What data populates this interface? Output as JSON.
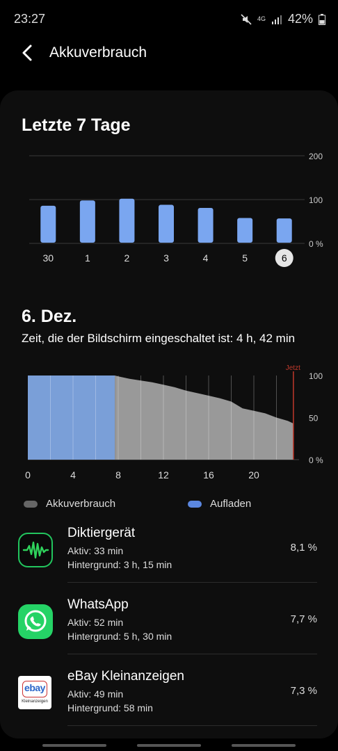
{
  "status": {
    "time": "23:27",
    "network": "4G",
    "battery": "42%"
  },
  "header": {
    "title": "Akkuverbrauch"
  },
  "week": {
    "title": "Letzte 7 Tage",
    "selected": "6",
    "chart_data": {
      "type": "bar",
      "categories": [
        "30",
        "1",
        "2",
        "3",
        "4",
        "5",
        "6"
      ],
      "values": [
        86,
        98,
        102,
        88,
        81,
        58,
        57
      ],
      "yticks": [
        "200",
        "100",
        "0 %"
      ],
      "ylim": [
        0,
        200
      ],
      "color": "#7aa6f0"
    }
  },
  "day": {
    "title": "6. Dez.",
    "screen_time": "Zeit, die der Bildschirm eingeschaltet ist: 4 h, 42 min",
    "now_label": "Jetzt",
    "chart_data": {
      "type": "area",
      "xticks": [
        "0",
        "4",
        "8",
        "12",
        "16",
        "20"
      ],
      "yticks": [
        "100",
        "50",
        "0 %"
      ],
      "xlim": [
        0,
        24
      ],
      "ylim": [
        0,
        100
      ],
      "charging": {
        "from": 0,
        "to": 7.7,
        "level": 100,
        "color": "#7a9fd8"
      },
      "usage": {
        "x": [
          7.7,
          8,
          9,
          10,
          11,
          12,
          13,
          14,
          15,
          16,
          17,
          18,
          19,
          20,
          21,
          22,
          23,
          23.5
        ],
        "y": [
          100,
          99,
          96,
          94,
          92,
          89,
          86,
          82,
          79,
          76,
          73,
          69,
          61,
          58,
          55,
          50,
          46,
          43
        ],
        "color": "#999999"
      },
      "now_x": 23.5
    }
  },
  "legend": {
    "usage": "Akkuverbrauch",
    "charging": "Aufladen",
    "usage_color": "#666666",
    "charging_color": "#5b87e0"
  },
  "apps": [
    {
      "name": "Diktiergerät",
      "active": "Aktiv: 33 min",
      "background": "Hintergrund: 3 h, 15 min",
      "percent": "8,1 %",
      "icon": "voice-recorder-icon"
    },
    {
      "name": "WhatsApp",
      "active": "Aktiv: 52 min",
      "background": "Hintergrund: 5 h, 30 min",
      "percent": "7,7 %",
      "icon": "whatsapp-icon"
    },
    {
      "name": "eBay Kleinanzeigen",
      "active": "Aktiv: 49 min",
      "background": "Hintergrund: 58 min",
      "percent": "7,3 %",
      "icon": "ebay-kleinanzeigen-icon",
      "icon_text": "ebay",
      "icon_subtext": "Kleinanzeigen"
    }
  ]
}
